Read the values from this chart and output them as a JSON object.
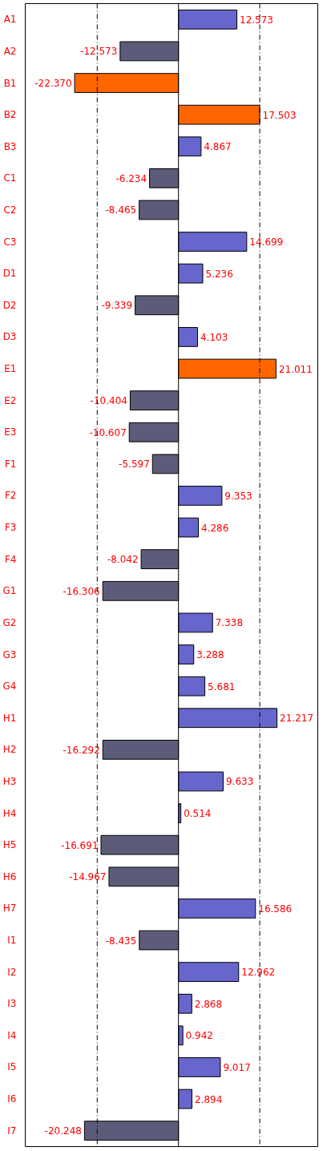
{
  "chart_data": {
    "type": "bar",
    "orientation": "horizontal",
    "categories": [
      "A1",
      "A2",
      "B1",
      "B2",
      "B3",
      "C1",
      "C2",
      "C3",
      "D1",
      "D2",
      "D3",
      "E1",
      "E2",
      "E3",
      "F1",
      "F2",
      "F3",
      "F4",
      "G1",
      "G2",
      "G3",
      "G4",
      "H1",
      "H2",
      "H3",
      "H4",
      "H5",
      "H6",
      "H7",
      "I1",
      "I2",
      "I3",
      "I4",
      "I5",
      "I6",
      "I7"
    ],
    "values": [
      12.573,
      -12.573,
      -22.37,
      17.503,
      4.867,
      -6.234,
      -8.465,
      14.699,
      5.236,
      -9.339,
      4.103,
      21.011,
      -10.404,
      -10.607,
      -5.597,
      9.353,
      4.286,
      -8.042,
      -16.306,
      7.338,
      3.288,
      5.681,
      21.217,
      -16.292,
      9.633,
      0.514,
      -16.691,
      -14.967,
      16.586,
      -8.435,
      12.962,
      2.868,
      0.942,
      9.017,
      2.894,
      -20.248
    ],
    "value_labels": [
      "12.573",
      "-12.573",
      "-22.370",
      "17.503",
      "4.867",
      "-6.234",
      "-8.465",
      "14.699",
      "5.236",
      "-9.339",
      "4.103",
      "21.011",
      "-10.404",
      "-10.607",
      "-5.597",
      "9.353",
      "4.286",
      "-8.042",
      "-16.306",
      "7.338",
      "3.288",
      "5.681",
      "21.217",
      "-16.292",
      "9.633",
      "0.514",
      "-16.691",
      "-14.967",
      "16.586",
      "-8.435",
      "12.962",
      "2.868",
      "0.942",
      "9.017",
      "2.894",
      "-20.248"
    ],
    "colors": [
      "#6666cc",
      "#5c5c7a",
      "#ff6600",
      "#ff6600",
      "#6666cc",
      "#5c5c7a",
      "#5c5c7a",
      "#6666cc",
      "#6666cc",
      "#5c5c7a",
      "#6666cc",
      "#ff6600",
      "#5c5c7a",
      "#5c5c7a",
      "#5c5c7a",
      "#6666cc",
      "#6666cc",
      "#5c5c7a",
      "#5c5c7a",
      "#6666cc",
      "#6666cc",
      "#6666cc",
      "#6666cc",
      "#5c5c7a",
      "#6666cc",
      "#6666cc",
      "#5c5c7a",
      "#5c5c7a",
      "#6666cc",
      "#5c5c7a",
      "#6666cc",
      "#6666cc",
      "#6666cc",
      "#6666cc",
      "#6666cc",
      "#5c5c7a"
    ],
    "xlim": [
      -33,
      30
    ],
    "tick_labels": "y",
    "grid": false,
    "ref_lines": [
      {
        "axis": "x",
        "value": -17.5,
        "line_style": "dashdot"
      },
      {
        "axis": "x",
        "value": 0,
        "line_style": "solid"
      },
      {
        "axis": "x",
        "value": 17.5,
        "line_style": "dashdot"
      }
    ]
  }
}
